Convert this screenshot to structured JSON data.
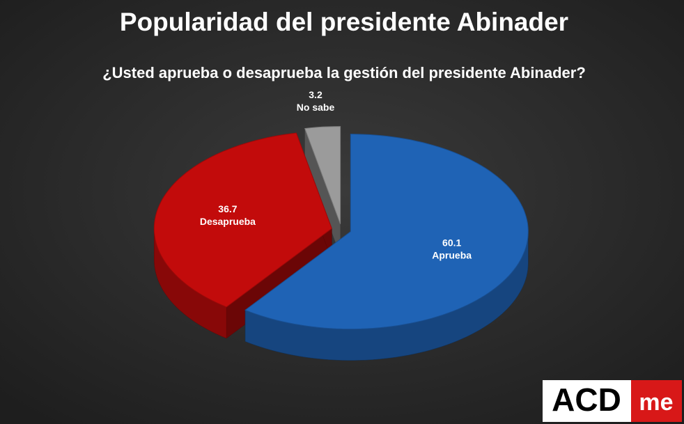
{
  "chart_data": {
    "type": "pie3d",
    "title": "Popularidad del presidente Abinader",
    "subtitle": "¿Usted aprueba o desaprueba la gestión del presidente Abinader?",
    "categories": [
      "Aprueba",
      "Desaprueba",
      "No sabe"
    ],
    "values": [
      60.1,
      36.7,
      3.2
    ],
    "colors": [
      "#1f63b5",
      "#c20b0b",
      "#9b9b9b"
    ]
  },
  "logo": {
    "main": "ACD",
    "badge": "me"
  }
}
